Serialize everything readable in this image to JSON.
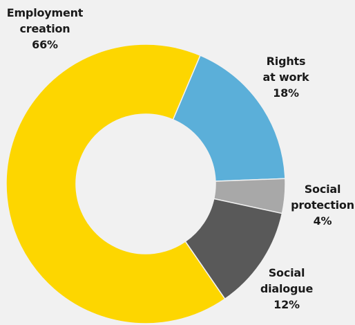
{
  "chart_data": {
    "type": "pie",
    "variant": "donut",
    "title": "",
    "slices": [
      {
        "name": "Rights at work",
        "lines": [
          "Rights",
          "at work"
        ],
        "value": 18,
        "label": "18%",
        "color": "#5bafd9"
      },
      {
        "name": "Social protection",
        "lines": [
          "Social",
          "protection"
        ],
        "value": 4,
        "label": "4%",
        "color": "#a8a8a8"
      },
      {
        "name": "Social dialogue",
        "lines": [
          "Social",
          "dialogue"
        ],
        "value": 12,
        "label": "12%",
        "color": "#595959"
      },
      {
        "name": "Employment creation",
        "lines": [
          "Employment",
          "creation"
        ],
        "value": 66,
        "label": "66%",
        "color": "#fdd600"
      }
    ]
  }
}
